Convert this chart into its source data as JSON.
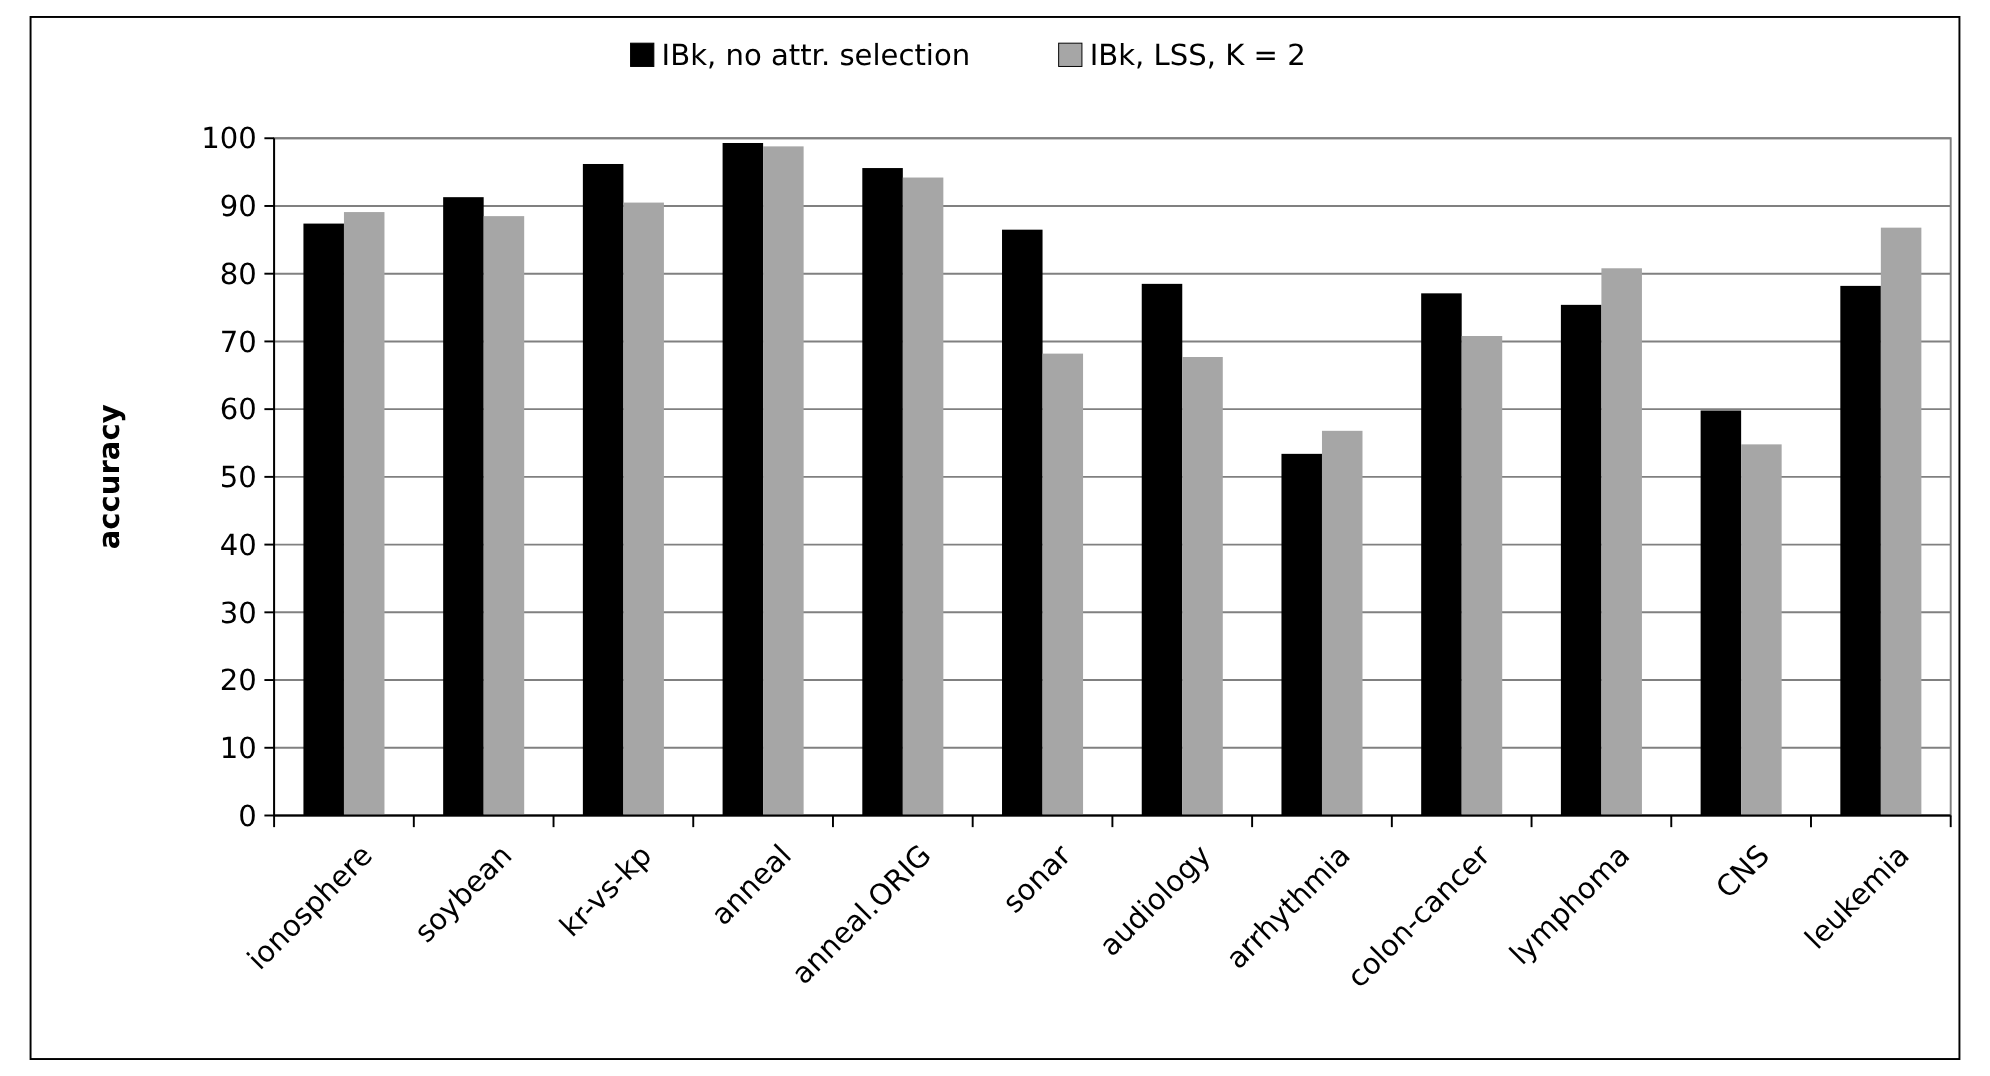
{
  "chart_data": {
    "type": "bar",
    "ylabel": "accuracy",
    "categories": [
      "ionosphere",
      "soybean",
      "kr-vs-kp",
      "anneal",
      "anneal.ORIG",
      "sonar",
      "audiology",
      "arrhythmia",
      "colon-cancer",
      "lymphoma",
      "CNS",
      "leukemia"
    ],
    "series": [
      {
        "name": "IBk, no attr. selection",
        "color": "#000000",
        "values": [
          87.4,
          91.3,
          96.2,
          99.3,
          95.6,
          86.5,
          78.5,
          53.4,
          77.1,
          75.4,
          59.8,
          78.2
        ]
      },
      {
        "name": "IBk, LSS, K = 2",
        "color": "#a6a6a6",
        "values": [
          89.1,
          88.5,
          90.5,
          98.8,
          94.2,
          68.2,
          67.7,
          56.8,
          70.8,
          80.8,
          54.8,
          86.8
        ]
      }
    ],
    "ylim": [
      0,
      100
    ],
    "yticks": [
      0,
      10,
      20,
      30,
      40,
      50,
      60,
      70,
      80,
      90,
      100
    ],
    "grid": "y",
    "legend": "top"
  }
}
